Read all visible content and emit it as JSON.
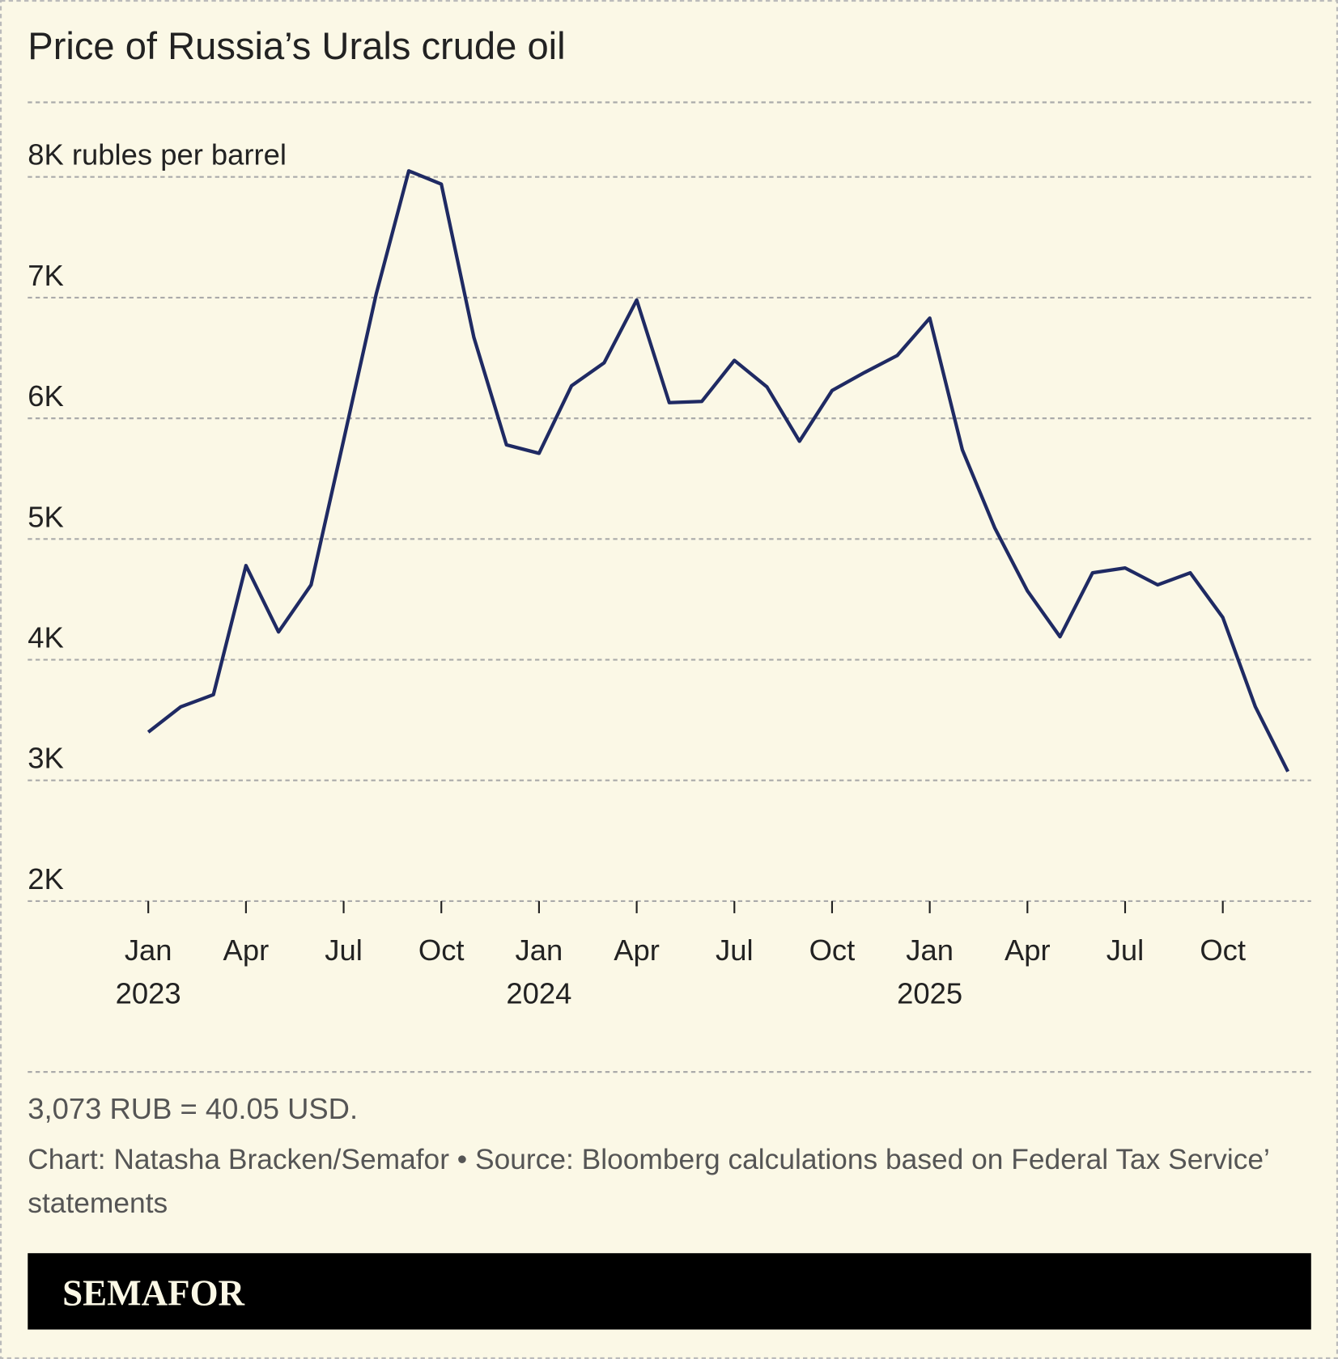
{
  "chart_data": {
    "type": "line",
    "title": "Price of Russia’s Urals crude oil",
    "x": [
      "2023-01",
      "2023-02",
      "2023-03",
      "2023-04",
      "2023-05",
      "2023-06",
      "2023-07",
      "2023-08",
      "2023-09",
      "2023-10",
      "2023-11",
      "2023-12",
      "2024-01",
      "2024-02",
      "2024-03",
      "2024-04",
      "2024-05",
      "2024-06",
      "2024-07",
      "2024-08",
      "2024-09",
      "2024-10",
      "2024-11",
      "2024-12",
      "2025-01",
      "2025-02",
      "2025-03",
      "2025-04",
      "2025-05",
      "2025-06",
      "2025-07",
      "2025-08",
      "2025-09",
      "2025-10",
      "2025-11",
      "2025-12"
    ],
    "series": [
      {
        "name": "Urals crude price",
        "color": "#1f2a63",
        "values": [
          3400,
          3610,
          3710,
          4780,
          4230,
          4620,
          5820,
          7030,
          8050,
          7940,
          6670,
          5780,
          5710,
          6270,
          6460,
          6980,
          6130,
          6140,
          6480,
          6260,
          5810,
          6230,
          6380,
          6520,
          6830,
          5740,
          5090,
          4570,
          4190,
          4720,
          4760,
          4620,
          4720,
          4350,
          3610,
          3073
        ]
      }
    ],
    "xticks": [
      {
        "value": "2023-01",
        "label": [
          "Jan",
          "2023"
        ]
      },
      {
        "value": "2023-04",
        "label": [
          "Apr"
        ]
      },
      {
        "value": "2023-07",
        "label": [
          "Jul"
        ]
      },
      {
        "value": "2023-10",
        "label": [
          "Oct"
        ]
      },
      {
        "value": "2024-01",
        "label": [
          "Jan",
          "2024"
        ]
      },
      {
        "value": "2024-04",
        "label": [
          "Apr"
        ]
      },
      {
        "value": "2024-07",
        "label": [
          "Jul"
        ]
      },
      {
        "value": "2024-10",
        "label": [
          "Oct"
        ]
      },
      {
        "value": "2025-01",
        "label": [
          "Jan",
          "2025"
        ]
      },
      {
        "value": "2025-04",
        "label": [
          "Apr"
        ]
      },
      {
        "value": "2025-07",
        "label": [
          "Jul"
        ]
      },
      {
        "value": "2025-10",
        "label": [
          "Oct"
        ]
      }
    ],
    "ylim": [
      2000,
      8000
    ],
    "yticks": [
      {
        "value": 2000,
        "label": "2K"
      },
      {
        "value": 3000,
        "label": "3K"
      },
      {
        "value": 4000,
        "label": "4K"
      },
      {
        "value": 5000,
        "label": "5K"
      },
      {
        "value": 6000,
        "label": "6K"
      },
      {
        "value": 7000,
        "label": "7K"
      },
      {
        "value": 8000,
        "label": "8K rubles per barrel"
      }
    ],
    "grid": true,
    "note": "3,073 RUB = 40.05 USD.",
    "source": "Chart: Natasha Bracken/Semafor • Source: Bloomberg calculations based on Federal Tax Service’ statements",
    "brand": "SEMAFOR"
  }
}
